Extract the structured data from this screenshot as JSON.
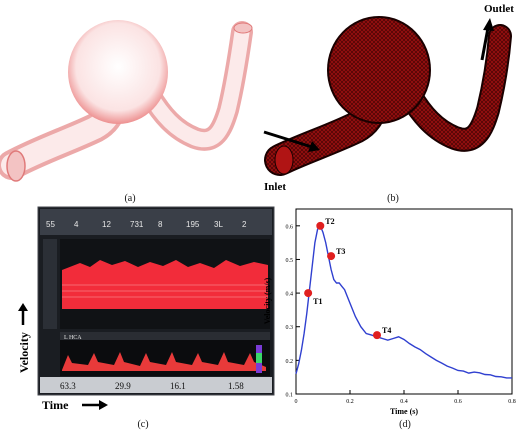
{
  "panels": {
    "a": {
      "caption": "(a)"
    },
    "b": {
      "caption": "(b)",
      "inlet_label": "Inlet",
      "outlet_label": "Outlet"
    },
    "c": {
      "caption": "(c)",
      "vessel_tag": "L HCA",
      "readouts": [
        "63.3",
        "29.9",
        "16.1",
        "1.58"
      ],
      "header_values": [
        "55",
        "4",
        "12",
        "731",
        "8",
        "195",
        "3L",
        "2"
      ],
      "velocity_label": "Velocity",
      "time_label": "Time"
    },
    "d": {
      "caption": "(d)"
    }
  },
  "chart_data": {
    "type": "line",
    "xlabel": "Time (s)",
    "ylabel": "Velocity (m/s)",
    "xlim": [
      0,
      0.8
    ],
    "ylim": [
      0.1,
      0.65
    ],
    "xticks": [
      "0",
      "0.2",
      "0.4",
      "0.6",
      "0.8"
    ],
    "yticks": [
      "0.1",
      "0.2",
      "0.3",
      "0.4",
      "0.5",
      "0.6"
    ],
    "series": [
      {
        "x": [
          0.0,
          0.01,
          0.02,
          0.03,
          0.04,
          0.05,
          0.06,
          0.07,
          0.08,
          0.09,
          0.1,
          0.11,
          0.12,
          0.13,
          0.14,
          0.15,
          0.16,
          0.17,
          0.18,
          0.19,
          0.2,
          0.22,
          0.24,
          0.26,
          0.28,
          0.3,
          0.32,
          0.34,
          0.36,
          0.38,
          0.4,
          0.42,
          0.44,
          0.46,
          0.48,
          0.5,
          0.52,
          0.54,
          0.56,
          0.58,
          0.6,
          0.62,
          0.64,
          0.66,
          0.68,
          0.7,
          0.72,
          0.74,
          0.76,
          0.78,
          0.8
        ],
        "values": [
          0.16,
          0.19,
          0.23,
          0.28,
          0.34,
          0.41,
          0.48,
          0.55,
          0.59,
          0.6,
          0.58,
          0.55,
          0.51,
          0.47,
          0.44,
          0.43,
          0.43,
          0.42,
          0.41,
          0.39,
          0.37,
          0.33,
          0.3,
          0.28,
          0.275,
          0.27,
          0.265,
          0.26,
          0.265,
          0.27,
          0.262,
          0.25,
          0.24,
          0.232,
          0.22,
          0.21,
          0.2,
          0.192,
          0.183,
          0.177,
          0.17,
          0.168,
          0.162,
          0.165,
          0.163,
          0.158,
          0.157,
          0.152,
          0.151,
          0.148,
          0.148
        ]
      }
    ],
    "markers": [
      {
        "label": "T1",
        "x": 0.045,
        "y": 0.4
      },
      {
        "label": "T2",
        "x": 0.09,
        "y": 0.6
      },
      {
        "label": "T3",
        "x": 0.13,
        "y": 0.51
      },
      {
        "label": "T4",
        "x": 0.3,
        "y": 0.275
      }
    ]
  }
}
